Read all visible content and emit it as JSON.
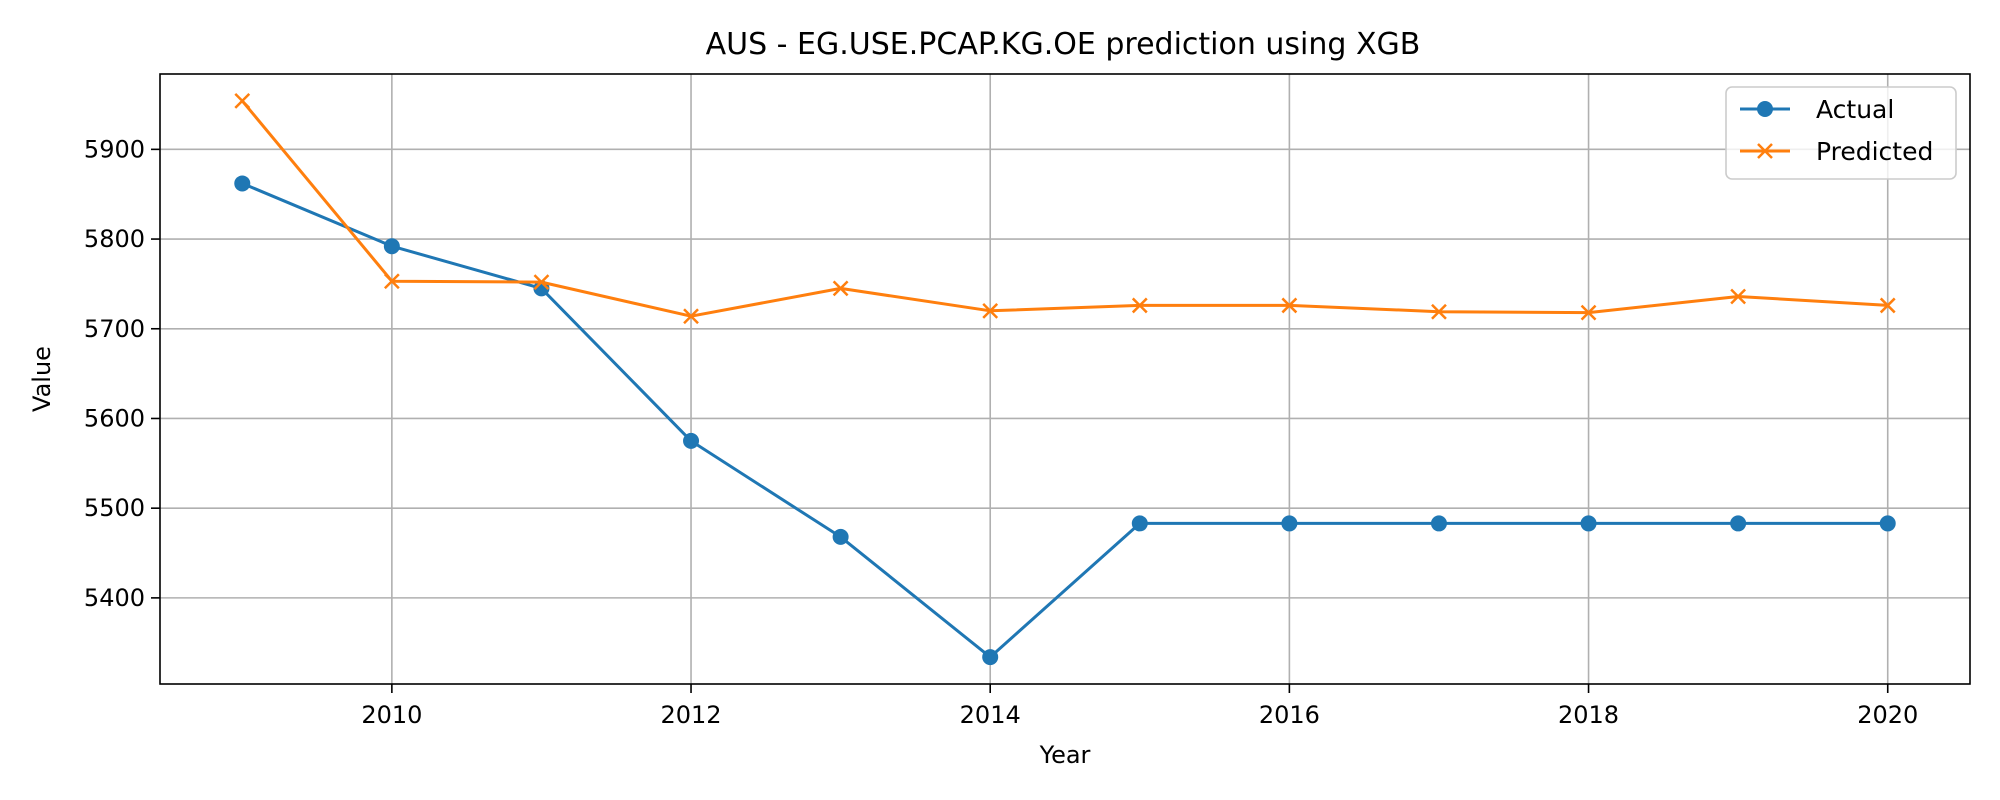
{
  "chart_data": {
    "type": "line",
    "title": "AUS - EG.USE.PCAP.KG.OE prediction using XGB",
    "xlabel": "Year",
    "ylabel": "Value",
    "x": [
      2009,
      2010,
      2011,
      2012,
      2013,
      2014,
      2015,
      2016,
      2017,
      2018,
      2019,
      2020
    ],
    "xticks": [
      2010,
      2012,
      2014,
      2016,
      2018,
      2020
    ],
    "yticks": [
      5400,
      5500,
      5600,
      5700,
      5800,
      5900
    ],
    "xlim": [
      2008.45,
      2020.55
    ],
    "ylim": [
      5304,
      5984
    ],
    "grid": true,
    "legend_position": "top-right",
    "series": [
      {
        "name": "Actual",
        "color": "#1f77b4",
        "marker": "circle",
        "values": [
          5862,
          5792,
          5745,
          5575,
          5468,
          5334,
          5483,
          5483,
          5483,
          5483,
          5483,
          5483
        ]
      },
      {
        "name": "Predicted",
        "color": "#ff7f0e",
        "marker": "x",
        "values": [
          5954,
          5753,
          5752,
          5714,
          5745,
          5720,
          5726,
          5726,
          5719,
          5718,
          5736,
          5726
        ]
      }
    ]
  }
}
